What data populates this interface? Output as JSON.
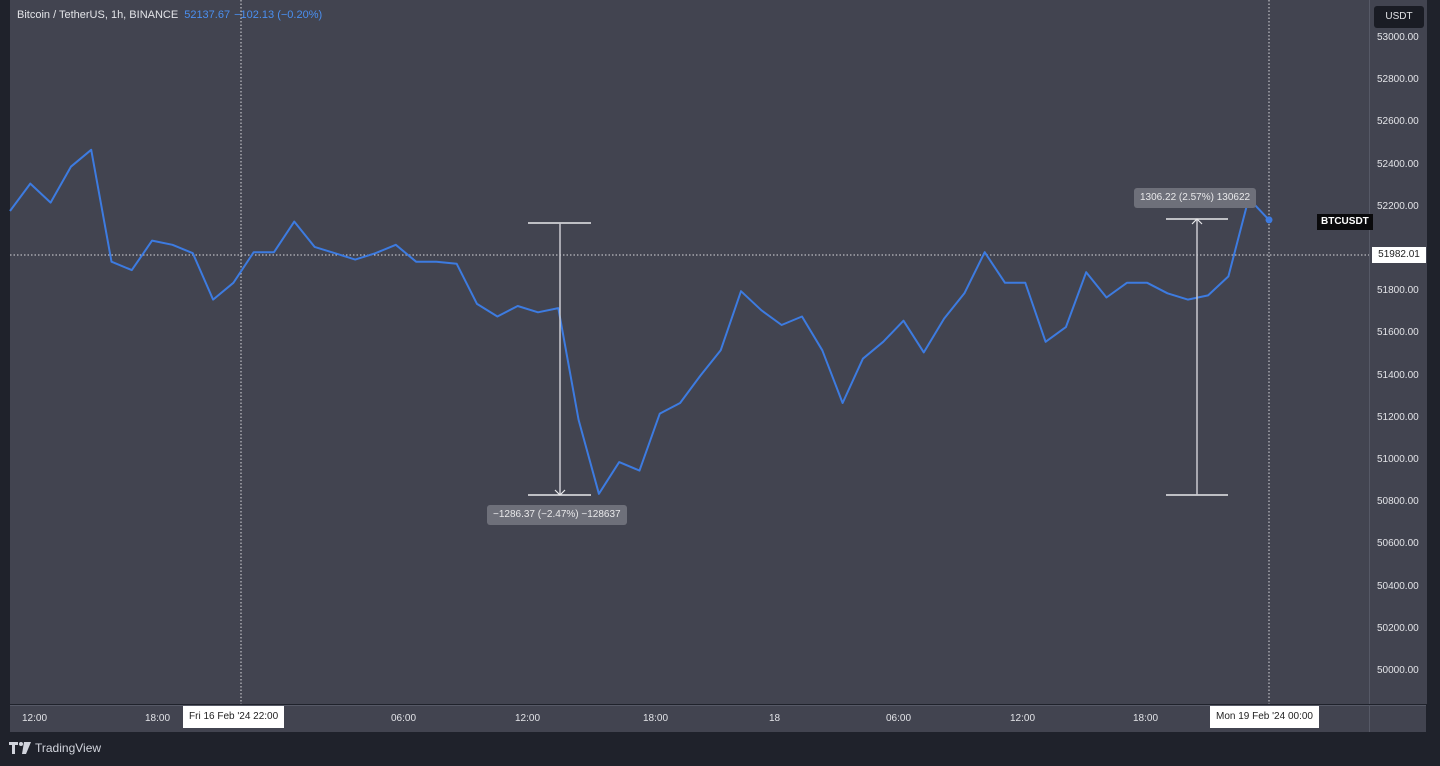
{
  "header": {
    "symbol_title": "Bitcoin / TetherUS, 1h, BINANCE",
    "last_price": "52137.67",
    "change": "−102.13 (−0.20%)"
  },
  "price_axis": {
    "currency_button": "USDT",
    "ticks": [
      "53000.00",
      "52800.00",
      "52600.00",
      "52400.00",
      "52200.00",
      "51800.00",
      "51600.00",
      "51400.00",
      "51200.00",
      "51000.00",
      "50800.00",
      "50600.00",
      "50400.00",
      "50200.00",
      "50000.00"
    ],
    "crosshair_price": "51982.01",
    "symbol_tag": "BTCUSDT"
  },
  "time_axis": {
    "labels": [
      "12:00",
      "18:00",
      "06:00",
      "12:00",
      "18:00",
      "18",
      "06:00",
      "12:00",
      "18:00"
    ],
    "crosshair_start": "Fri 16 Feb '24   22:00",
    "crosshair_end": "Mon 19 Feb '24   00:00"
  },
  "measurements": [
    {
      "label": "−1286.37 (−2.47%) −128637",
      "direction": "down"
    },
    {
      "label": "1306.22 (2.57%) 130622",
      "direction": "up"
    }
  ],
  "footer": {
    "brand": "TradingView"
  },
  "colors": {
    "line": "#3d7be0",
    "background": "#424450",
    "outer": "#1f222b"
  },
  "chart_data": {
    "type": "line",
    "title": "Bitcoin / TetherUS, 1h, BINANCE",
    "xlabel": "",
    "ylabel": "USDT",
    "ylim": [
      49850,
      53150
    ],
    "grid": false,
    "x_ticks": [
      "Fri 16 Feb 12:00",
      "18:00",
      "Fri 16 Feb '24 22:00",
      "06:00",
      "12:00",
      "18:00",
      "18",
      "06:00",
      "12:00",
      "18:00",
      "Mon 19 Feb '24 00:00"
    ],
    "series": [
      {
        "name": "BTCUSDT close",
        "values": [
          52180,
          52310,
          52220,
          52390,
          52470,
          51940,
          51900,
          52040,
          52020,
          51980,
          51760,
          51840,
          51985,
          51985,
          52130,
          52010,
          51980,
          51950,
          51980,
          52020,
          51940,
          51940,
          51930,
          51740,
          51680,
          51730,
          51700,
          51720,
          51190,
          50840,
          50990,
          50950,
          51220,
          51270,
          51400,
          51520,
          51800,
          51710,
          51640,
          51680,
          51520,
          51270,
          51480,
          51560,
          51660,
          51510,
          51670,
          51790,
          51985,
          51840,
          51840,
          51560,
          51630,
          51890,
          51770,
          51840,
          51840,
          51790,
          51760,
          51780,
          51870,
          52240,
          52138
        ]
      }
    ],
    "annotations": [
      {
        "type": "measure",
        "from": 52125,
        "to": 50839,
        "text": "−1286.37 (−2.47%) −128637"
      },
      {
        "type": "measure",
        "from": 50839,
        "to": 52145,
        "text": "1306.22 (2.57%) 130622"
      },
      {
        "type": "crosshair",
        "price": 51982.01
      }
    ]
  }
}
